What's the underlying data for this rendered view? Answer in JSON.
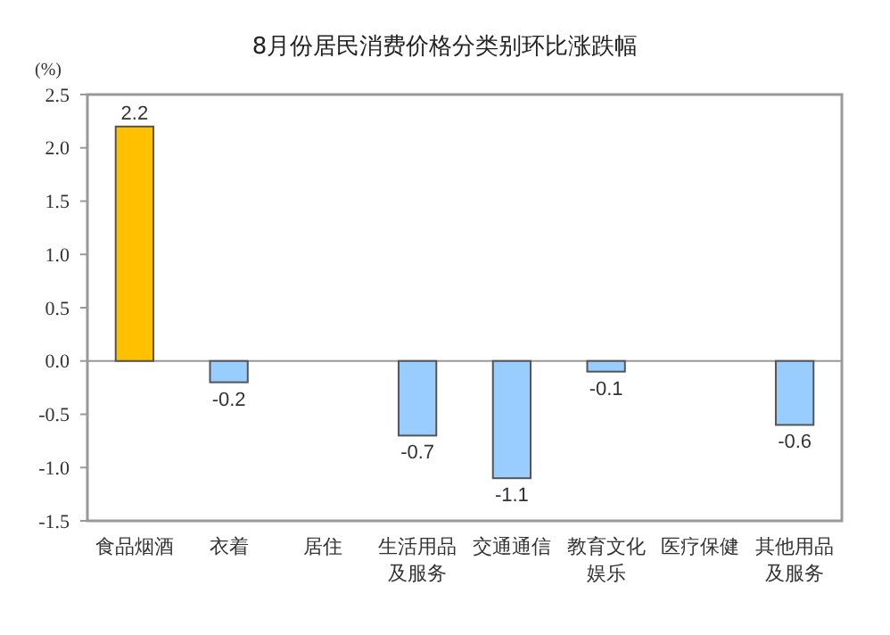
{
  "chart_data": {
    "type": "bar",
    "title": "8月份居民消费价格分类别环比涨跌幅",
    "ylabel": "(%)",
    "categories": [
      "食品烟酒",
      "衣着",
      "居住",
      "生活用品及服务",
      "交通通信",
      "教育文化娱乐",
      "医疗保健",
      "其他用品及服务"
    ],
    "values": [
      2.2,
      -0.2,
      null,
      -0.7,
      -1.1,
      -0.1,
      null,
      -0.6
    ],
    "colors": [
      "#ffc000",
      "#99ccff",
      null,
      "#99ccff",
      "#99ccff",
      "#99ccff",
      null,
      "#99ccff"
    ],
    "ylim": [
      -1.5,
      2.5
    ],
    "yticks": [
      {
        "value": -1.5,
        "label": "-1.5"
      },
      {
        "value": -1.0,
        "label": "-1.0"
      },
      {
        "value": -0.5,
        "label": "-0.5"
      },
      {
        "value": 0,
        "label": "0.0"
      },
      {
        "value": 0.5,
        "label": "0.5"
      },
      {
        "value": 1.0,
        "label": "1.0"
      },
      {
        "value": 1.5,
        "label": "1.5"
      },
      {
        "value": 2.0,
        "label": "2.0"
      },
      {
        "value": 2.5,
        "label": "2.5"
      }
    ],
    "data_labels": true
  }
}
